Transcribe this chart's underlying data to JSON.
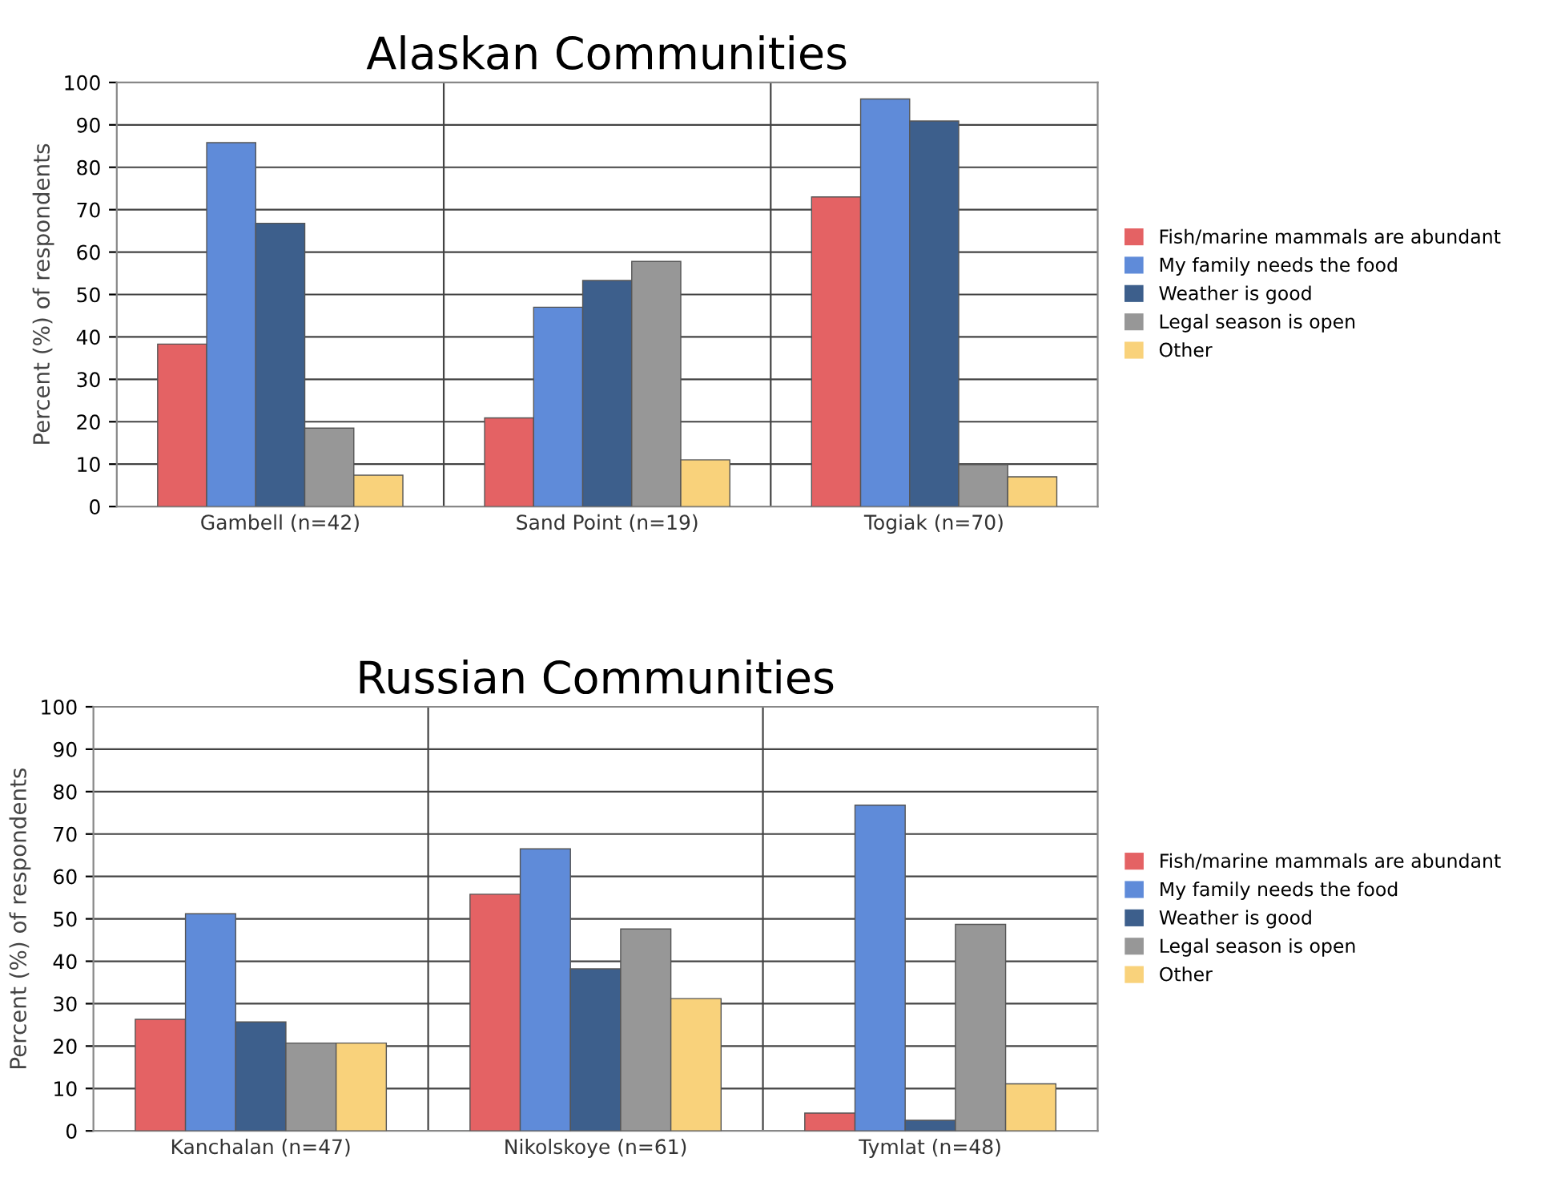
{
  "chart_data": [
    {
      "type": "bar",
      "title": "Alaskan Communities",
      "ylabel": "Percent (%) of respondents",
      "categories": [
        "Gambell (n=42)",
        "Sand Point (n=19)",
        "Togiak (n=70)"
      ],
      "ylim": [
        0,
        100
      ],
      "yticks": [
        0,
        10,
        20,
        30,
        40,
        50,
        60,
        70,
        80,
        90,
        100
      ],
      "grid": true,
      "legend": "right",
      "series": [
        {
          "name": "Fish/marine mammals are abundant",
          "color": "#e46264",
          "values": [
            38.3,
            20.9,
            73
          ]
        },
        {
          "name": "My family needs the food",
          "color": "#5f8bd9",
          "values": [
            85.8,
            47,
            96.1
          ]
        },
        {
          "name": "Weather is good",
          "color": "#3d5f8c",
          "values": [
            66.8,
            53.3,
            90.9
          ]
        },
        {
          "name": "Legal season is open",
          "color": "#979797",
          "values": [
            18.5,
            57.8,
            9.9
          ]
        },
        {
          "name": "Other",
          "color": "#f9d27b",
          "values": [
            7.4,
            11,
            7
          ]
        }
      ]
    },
    {
      "type": "bar",
      "title": "Russian Communities",
      "ylabel": "Percent (%) of respondents",
      "categories": [
        "Kanchalan (n=47)",
        "Nikolskoye (n=61)",
        "Tymlat (n=48)"
      ],
      "ylim": [
        0,
        100
      ],
      "yticks": [
        0,
        10,
        20,
        30,
        40,
        50,
        60,
        70,
        80,
        90,
        100
      ],
      "grid": true,
      "legend": "right",
      "series": [
        {
          "name": "Fish/marine mammals are abundant",
          "color": "#e46264",
          "values": [
            26.3,
            55.8,
            4.2
          ]
        },
        {
          "name": "My family needs the food",
          "color": "#5f8bd9",
          "values": [
            51.2,
            66.5,
            76.8
          ]
        },
        {
          "name": "Weather is good",
          "color": "#3d5f8c",
          "values": [
            25.7,
            38.2,
            2.5
          ]
        },
        {
          "name": "Legal season is open",
          "color": "#979797",
          "values": [
            20.7,
            47.6,
            48.7
          ]
        },
        {
          "name": "Other",
          "color": "#f9d27b",
          "values": [
            20.7,
            31.2,
            11.1
          ]
        }
      ]
    }
  ]
}
